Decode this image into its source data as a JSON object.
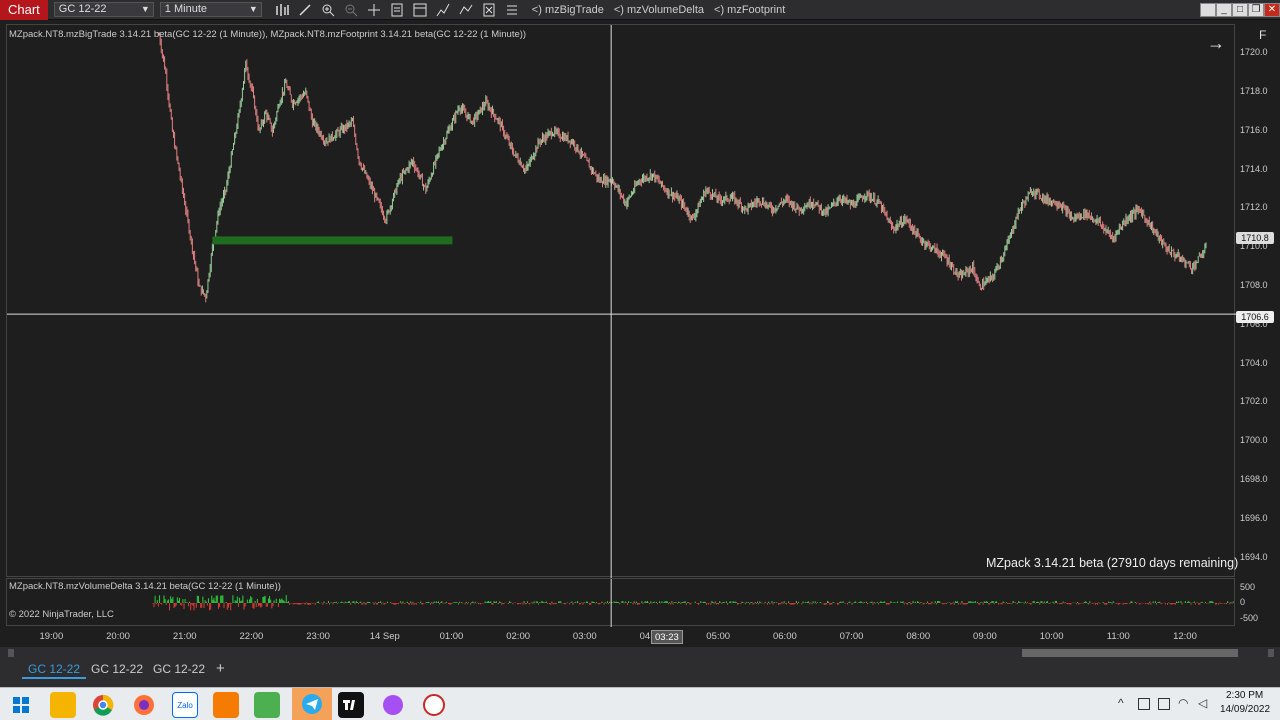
{
  "toolbar": {
    "chart_label": "Chart",
    "instrument": "GC 12-22",
    "interval": "1 Minute",
    "links": [
      "<) mzBigTrade",
      "<) mzVolumeDelta",
      "<) mzFootprint"
    ]
  },
  "price_panel": {
    "legend": "MZpack.NT8.mzBigTrade 3.14.21 beta(GC 12-22 (1 Minute)), MZpack.NT8.mzFootprint 3.14.21 beta(GC 12-22 (1 Minute))",
    "watermark": "MZpack 3.14.21 beta  (27910 days remaining)",
    "f_button": "F",
    "y_ticks": [
      "1720.0",
      "1718.0",
      "1716.0",
      "1714.0",
      "1712.0",
      "1710.0",
      "1708.0",
      "1706.0",
      "1704.0",
      "1702.0",
      "1700.0",
      "1698.0",
      "1696.0",
      "1694.0"
    ],
    "last_price": "1710.8",
    "crosshair_price": "1706.6"
  },
  "indicator_panel": {
    "legend": "MZpack.NT8.mzVolumeDelta 3.14.21 beta(GC 12-22 (1 Minute))",
    "copyright": "© 2022 NinjaTrader, LLC",
    "y_ticks": [
      "500",
      "0",
      "-500"
    ]
  },
  "x_axis": {
    "ticks": [
      "19:00",
      "20:00",
      "21:00",
      "22:00",
      "23:00",
      "14 Sep",
      "01:00",
      "02:00",
      "03:00",
      "04:00",
      "05:00",
      "06:00",
      "07:00",
      "08:00",
      "09:00",
      "10:00",
      "11:00",
      "12:00"
    ],
    "crosshair_time": "03:23"
  },
  "tabs": {
    "items": [
      "GC 12-22",
      "GC 12-22",
      "GC 12-22"
    ],
    "add_label": "+"
  },
  "taskbar": {
    "time": "2:30 PM",
    "date": "14/09/2022"
  },
  "chart_data": {
    "type": "candlestick",
    "ylim": [
      1693,
      1721.5
    ],
    "price_path": [
      [
        19.3,
        null
      ],
      [
        20.6,
        1721
      ],
      [
        20.7,
        1719
      ],
      [
        20.8,
        1716
      ],
      [
        20.9,
        1714
      ],
      [
        21.0,
        1712
      ],
      [
        21.1,
        1710
      ],
      [
        21.2,
        1708
      ],
      [
        21.3,
        1707.5
      ],
      [
        21.4,
        1710
      ],
      [
        21.5,
        1712
      ],
      [
        21.6,
        1713
      ],
      [
        21.7,
        1715
      ],
      [
        21.8,
        1717
      ],
      [
        21.9,
        1719.5
      ],
      [
        22.0,
        1718
      ],
      [
        22.1,
        1716
      ],
      [
        22.2,
        1717
      ],
      [
        22.3,
        1716
      ],
      [
        22.4,
        1717.5
      ],
      [
        22.5,
        1718.5
      ],
      [
        22.6,
        1717.5
      ],
      [
        22.8,
        1718
      ],
      [
        22.9,
        1716.5
      ],
      [
        23.1,
        1715.5
      ],
      [
        23.3,
        1716
      ],
      [
        23.5,
        1716.5
      ],
      [
        23.6,
        1714.5
      ],
      [
        23.8,
        1713
      ],
      [
        24.0,
        1711.5
      ],
      [
        24.2,
        1713.5
      ],
      [
        24.4,
        1714.5
      ],
      [
        24.6,
        1713
      ],
      [
        24.8,
        1715
      ],
      [
        25.0,
        1716.5
      ],
      [
        25.1,
        1717.3
      ],
      [
        25.3,
        1716.5
      ],
      [
        25.5,
        1717.5
      ],
      [
        25.7,
        1716.5
      ],
      [
        25.9,
        1715
      ],
      [
        26.1,
        1714
      ],
      [
        26.3,
        1715.5
      ],
      [
        26.5,
        1716
      ],
      [
        26.8,
        1715.5
      ],
      [
        27.0,
        1714.5
      ],
      [
        27.2,
        1713.5
      ],
      [
        27.4,
        1713.5
      ],
      [
        27.6,
        1712.3
      ],
      [
        27.8,
        1713.5
      ],
      [
        28.0,
        1713.8
      ],
      [
        28.2,
        1713
      ],
      [
        28.4,
        1712.5
      ],
      [
        28.6,
        1711.5
      ],
      [
        28.8,
        1713
      ],
      [
        29.0,
        1712.5
      ],
      [
        29.2,
        1712.6
      ],
      [
        29.4,
        1712
      ],
      [
        29.6,
        1712.5
      ],
      [
        29.8,
        1712
      ],
      [
        30.0,
        1712.5
      ],
      [
        30.2,
        1712
      ],
      [
        30.4,
        1712.4
      ],
      [
        30.6,
        1711.8
      ],
      [
        30.8,
        1712.6
      ],
      [
        31.0,
        1712.2
      ],
      [
        31.2,
        1712.8
      ],
      [
        31.4,
        1712.3
      ],
      [
        31.6,
        1711
      ],
      [
        31.8,
        1711.5
      ],
      [
        32.0,
        1710.5
      ],
      [
        32.2,
        1710
      ],
      [
        32.4,
        1709.5
      ],
      [
        32.6,
        1708.5
      ],
      [
        32.8,
        1709
      ],
      [
        32.9,
        1708
      ],
      [
        33.1,
        1708.5
      ],
      [
        33.3,
        1710
      ],
      [
        33.5,
        1712
      ],
      [
        33.7,
        1713
      ],
      [
        33.9,
        1712.5
      ],
      [
        34.1,
        1712.3
      ],
      [
        34.3,
        1711.5
      ],
      [
        34.5,
        1711.8
      ],
      [
        34.7,
        1711.3
      ],
      [
        34.9,
        1710.5
      ],
      [
        35.1,
        1711.5
      ],
      [
        35.3,
        1712
      ],
      [
        35.5,
        1711
      ],
      [
        35.7,
        1710
      ],
      [
        35.9,
        1709.5
      ],
      [
        36.1,
        1709
      ],
      [
        36.3,
        1710
      ]
    ],
    "support_level": 1710.4,
    "crosshair_price": 1706.6,
    "crosshair_time": "03:23",
    "last_price": 1710.8,
    "volume_delta_range": [
      -500,
      500
    ]
  }
}
